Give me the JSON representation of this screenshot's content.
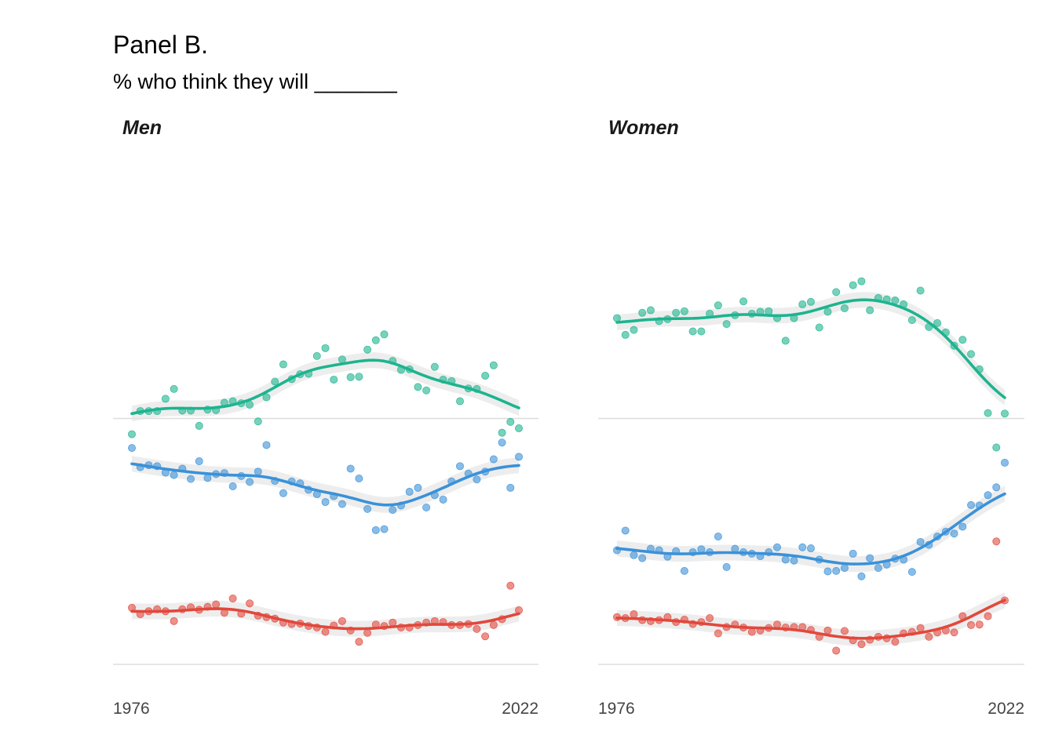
{
  "title": "Panel B.",
  "subtitle": "% who think they will _______",
  "colors": {
    "green": "#1db48f",
    "blue": "#3a91d9",
    "red": "#e1483c"
  },
  "chart_data": [
    {
      "type": "scatter",
      "facet": "Men",
      "x_ticks": [
        "1976",
        "2022"
      ],
      "xlim": [
        1976,
        2022
      ],
      "ylim": [
        0,
        100
      ],
      "grid": "horizontal",
      "series": [
        {
          "color": "#1db48f",
          "x": [
            1976,
            1977,
            1978,
            1979,
            1980,
            1981,
            1982,
            1983,
            1984,
            1985,
            1986,
            1987,
            1988,
            1989,
            1990,
            1991,
            1992,
            1993,
            1994,
            1995,
            1996,
            1997,
            1998,
            1999,
            2000,
            2001,
            2002,
            2003,
            2004,
            2005,
            2006,
            2007,
            2008,
            2009,
            2010,
            2011,
            2012,
            2013,
            2014,
            2015,
            2016,
            2017,
            2018,
            2019,
            2020,
            2021,
            2022
          ],
          "y": [
            46.8,
            51.5,
            51.5,
            51.5,
            54.0,
            56.0,
            51.6,
            51.6,
            48.5,
            51.8,
            51.7,
            53.2,
            53.5,
            53.1,
            52.8,
            49.4,
            54.3,
            57.5,
            61.0,
            58.0,
            59.0,
            59.1,
            62.7,
            64.3,
            57.9,
            62.0,
            58.4,
            58.5,
            64.0,
            65.9,
            67.1,
            61.7,
            59.9,
            60.0,
            56.4,
            55.7,
            60.5,
            57.9,
            57.6,
            53.5,
            56.1,
            56.0,
            58.7,
            60.8,
            47.1,
            49.3,
            48.0
          ]
        },
        {
          "color": "#3a91d9",
          "x": [
            1976,
            1977,
            1978,
            1979,
            1980,
            1981,
            1982,
            1983,
            1984,
            1985,
            1986,
            1987,
            1988,
            1989,
            1990,
            1991,
            1992,
            1993,
            1994,
            1995,
            1996,
            1997,
            1998,
            1999,
            2000,
            2001,
            2002,
            2003,
            2004,
            2005,
            2006,
            2007,
            2008,
            2009,
            2010,
            2011,
            2012,
            2013,
            2014,
            2015,
            2016,
            2017,
            2018,
            2019,
            2020,
            2021,
            2022
          ],
          "y": [
            44.0,
            40.1,
            40.5,
            40.3,
            39.0,
            38.5,
            39.8,
            37.7,
            41.3,
            37.9,
            38.7,
            38.9,
            36.2,
            38.3,
            37.1,
            39.2,
            44.6,
            37.3,
            34.8,
            37.2,
            36.8,
            35.5,
            34.6,
            33.0,
            34.2,
            32.6,
            39.8,
            37.8,
            31.6,
            27.3,
            27.5,
            31.4,
            32.3,
            35.1,
            35.9,
            31.9,
            34.4,
            33.5,
            37.2,
            40.3,
            38.8,
            37.6,
            39.2,
            41.7,
            45.1,
            35.9,
            42.2
          ]
        },
        {
          "color": "#e1483c",
          "x": [
            1976,
            1977,
            1978,
            1979,
            1980,
            1981,
            1982,
            1983,
            1984,
            1985,
            1986,
            1987,
            1988,
            1989,
            1990,
            1991,
            1992,
            1993,
            1994,
            1995,
            1996,
            1997,
            1998,
            1999,
            2000,
            2001,
            2002,
            2003,
            2004,
            2005,
            2006,
            2007,
            2008,
            2009,
            2010,
            2011,
            2012,
            2013,
            2014,
            2015,
            2016,
            2017,
            2018,
            2019,
            2020,
            2021,
            2022
          ],
          "y": [
            11.5,
            10.2,
            10.8,
            11.2,
            10.8,
            8.8,
            11.2,
            11.6,
            11.1,
            11.7,
            12.2,
            10.5,
            13.4,
            10.3,
            12.4,
            9.9,
            9.6,
            9.3,
            8.5,
            8.2,
            8.3,
            7.8,
            7.5,
            6.6,
            7.9,
            8.8,
            6.9,
            4.6,
            6.4,
            8.1,
            7.8,
            8.5,
            7.5,
            7.5,
            8.0,
            8.5,
            8.8,
            8.6,
            8.0,
            8.0,
            8.2,
            7.2,
            5.7,
            8.0,
            9.2,
            16.0,
            11.0
          ]
        }
      ]
    },
    {
      "type": "scatter",
      "facet": "Women",
      "x_ticks": [
        "1976",
        "2022"
      ],
      "xlim": [
        1976,
        2022
      ],
      "ylim": [
        0,
        100
      ],
      "grid": "horizontal",
      "series": [
        {
          "color": "#1db48f",
          "x": [
            1976,
            1977,
            1978,
            1979,
            1980,
            1981,
            1982,
            1983,
            1984,
            1985,
            1986,
            1987,
            1988,
            1989,
            1990,
            1991,
            1992,
            1993,
            1994,
            1995,
            1996,
            1997,
            1998,
            1999,
            2000,
            2001,
            2002,
            2003,
            2004,
            2005,
            2006,
            2007,
            2008,
            2009,
            2010,
            2011,
            2012,
            2013,
            2014,
            2015,
            2016,
            2017,
            2018,
            2019,
            2020,
            2021,
            2022
          ],
          "y": [
            70.4,
            67.0,
            68.0,
            71.5,
            72.0,
            69.8,
            70.2,
            71.5,
            71.8,
            67.7,
            67.7,
            71.3,
            73.0,
            69.2,
            71.0,
            73.8,
            71.3,
            71.7,
            71.8,
            70.4,
            65.8,
            70.4,
            73.2,
            73.7,
            68.5,
            71.7,
            75.7,
            72.4,
            77.1,
            77.9,
            72.0,
            74.5,
            74.2,
            74.0,
            73.2,
            70.0,
            76.0,
            68.6,
            69.4,
            67.5,
            64.8,
            66.0,
            63.1,
            60.0,
            51.1,
            44.1,
            51.0
          ]
        },
        {
          "color": "#3a91d9",
          "x": [
            1976,
            1977,
            1978,
            1979,
            1980,
            1981,
            1982,
            1983,
            1984,
            1985,
            1986,
            1987,
            1988,
            1989,
            1990,
            1991,
            1992,
            1993,
            1994,
            1995,
            1996,
            1997,
            1998,
            1999,
            2000,
            2001,
            2002,
            2003,
            2004,
            2005,
            2006,
            2007,
            2008,
            2009,
            2010,
            2011,
            2012,
            2013,
            2014,
            2015,
            2016,
            2017,
            2018,
            2019,
            2020,
            2021,
            2022
          ],
          "y": [
            23.2,
            27.2,
            22.2,
            21.6,
            23.5,
            23.2,
            21.9,
            23.0,
            19.0,
            22.8,
            23.4,
            22.8,
            26.0,
            19.8,
            23.5,
            22.8,
            22.5,
            22.0,
            22.8,
            23.8,
            21.3,
            21.1,
            23.8,
            23.6,
            21.3,
            18.9,
            19.0,
            19.6,
            22.5,
            17.9,
            21.6,
            19.6,
            20.3,
            21.5,
            21.3,
            18.8,
            24.9,
            24.3,
            26.0,
            27.0,
            26.6,
            28.0,
            32.4,
            32.3,
            34.4,
            36.0,
            41.0
          ]
        },
        {
          "color": "#e1483c",
          "x": [
            1976,
            1977,
            1978,
            1979,
            1980,
            1981,
            1982,
            1983,
            1984,
            1985,
            1986,
            1987,
            1988,
            1989,
            1990,
            1991,
            1992,
            1993,
            1994,
            1995,
            1996,
            1997,
            1998,
            1999,
            2000,
            2001,
            2002,
            2003,
            2004,
            2005,
            2006,
            2007,
            2008,
            2009,
            2010,
            2011,
            2012,
            2013,
            2014,
            2015,
            2016,
            2017,
            2018,
            2019,
            2020,
            2021,
            2022
          ],
          "y": [
            9.6,
            9.4,
            10.2,
            9.0,
            8.8,
            9.0,
            9.6,
            8.6,
            9.1,
            8.2,
            8.6,
            9.4,
            6.3,
            7.6,
            8.1,
            7.5,
            6.6,
            6.9,
            7.4,
            8.1,
            7.5,
            7.6,
            7.6,
            7.0,
            5.6,
            6.9,
            2.8,
            6.8,
            4.9,
            4.1,
            5.0,
            5.6,
            5.3,
            4.6,
            6.3,
            6.6,
            7.4,
            5.6,
            6.5,
            6.9,
            6.5,
            9.8,
            8.0,
            8.1,
            9.8,
            25.0,
            13.0
          ]
        }
      ]
    }
  ]
}
